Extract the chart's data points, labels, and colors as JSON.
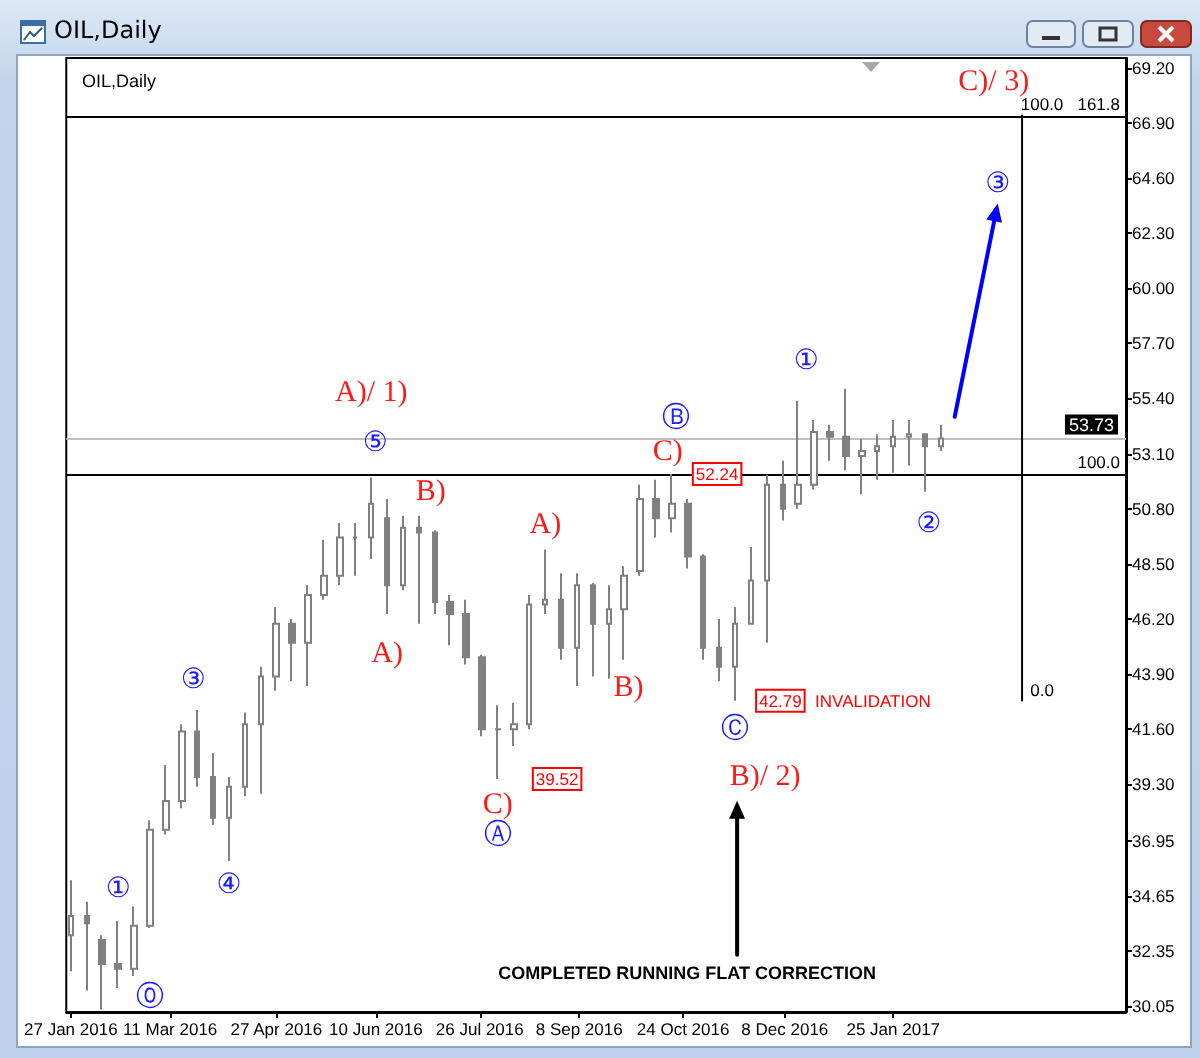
{
  "chart_data": {
    "type": "candlestick",
    "title": "OIL,Daily",
    "subtitle": "OIL,Daily",
    "series": [
      {
        "color": "#808080",
        "x": [
          "2016-01-27",
          "2016-02-03",
          "2016-02-10",
          "2016-02-17",
          "2016-02-24",
          "2016-03-02",
          "2016-03-09",
          "2016-03-16",
          "2016-03-23",
          "2016-03-30",
          "2016-04-06",
          "2016-04-13",
          "2016-04-20",
          "2016-04-27",
          "2016-05-04",
          "2016-05-11",
          "2016-05-18",
          "2016-05-25",
          "2016-06-01",
          "2016-06-08",
          "2016-06-15",
          "2016-06-22",
          "2016-06-29",
          "2016-07-06",
          "2016-07-13",
          "2016-07-20",
          "2016-07-27",
          "2016-08-03",
          "2016-08-10",
          "2016-08-17",
          "2016-08-24",
          "2016-08-31",
          "2016-09-07",
          "2016-09-14",
          "2016-09-21",
          "2016-09-28",
          "2016-10-05",
          "2016-10-12",
          "2016-10-19",
          "2016-10-26",
          "2016-11-02",
          "2016-11-09",
          "2016-11-16",
          "2016-11-23",
          "2016-11-30",
          "2016-12-07",
          "2016-12-14",
          "2016-12-21",
          "2016-12-28",
          "2017-01-04",
          "2017-01-11",
          "2017-01-18",
          "2017-01-25",
          "2017-02-01",
          "2017-02-08",
          "2017-02-15"
        ],
        "ohlc": [
          [
            33.0,
            35.3,
            31.5,
            33.8
          ],
          [
            33.8,
            34.4,
            30.7,
            33.5
          ],
          [
            32.8,
            33.0,
            29.9,
            31.8
          ],
          [
            31.8,
            33.6,
            30.8,
            31.6
          ],
          [
            31.6,
            34.2,
            31.3,
            33.4
          ],
          [
            33.4,
            37.8,
            33.3,
            37.4
          ],
          [
            37.4,
            40.1,
            37.2,
            38.6
          ],
          [
            38.6,
            41.8,
            38.3,
            41.5
          ],
          [
            41.5,
            42.4,
            39.2,
            39.6
          ],
          [
            39.6,
            40.6,
            37.6,
            37.9
          ],
          [
            37.9,
            39.6,
            36.1,
            39.2
          ],
          [
            39.2,
            42.3,
            38.8,
            41.8
          ],
          [
            41.8,
            44.2,
            38.9,
            43.8
          ],
          [
            43.8,
            46.7,
            43.2,
            46.0
          ],
          [
            46.0,
            46.2,
            43.6,
            45.2
          ],
          [
            45.2,
            47.6,
            43.4,
            47.2
          ],
          [
            47.2,
            49.5,
            47.0,
            48.0
          ],
          [
            48.0,
            50.2,
            47.6,
            49.6
          ],
          [
            49.6,
            50.2,
            48.0,
            49.6
          ],
          [
            49.6,
            52.1,
            48.7,
            51.0
          ],
          [
            50.4,
            51.2,
            46.4,
            47.6
          ],
          [
            47.6,
            50.5,
            47.4,
            50.0
          ],
          [
            50.0,
            50.5,
            46.0,
            49.8
          ],
          [
            49.8,
            49.9,
            46.4,
            46.9
          ],
          [
            46.9,
            47.2,
            45.1,
            46.4
          ],
          [
            46.4,
            47.0,
            44.3,
            44.6
          ],
          [
            44.6,
            44.7,
            41.3,
            41.6
          ],
          [
            41.6,
            42.6,
            39.52,
            41.6
          ],
          [
            41.6,
            42.7,
            40.9,
            41.8
          ],
          [
            41.8,
            47.2,
            41.6,
            46.8
          ],
          [
            46.8,
            49.1,
            46.4,
            47.0
          ],
          [
            47.0,
            48.1,
            44.5,
            45.0
          ],
          [
            45.0,
            48.1,
            43.4,
            47.6
          ],
          [
            47.6,
            47.7,
            43.8,
            46.0
          ],
          [
            46.0,
            47.6,
            43.7,
            46.6
          ],
          [
            46.6,
            48.4,
            44.5,
            48.0
          ],
          [
            48.2,
            51.8,
            48.0,
            51.2
          ],
          [
            51.2,
            52.0,
            49.6,
            50.4
          ],
          [
            50.4,
            52.24,
            49.8,
            51.0
          ],
          [
            51.0,
            51.2,
            48.3,
            48.8
          ],
          [
            48.8,
            48.9,
            44.5,
            45.0
          ],
          [
            45.0,
            46.2,
            43.6,
            44.2
          ],
          [
            44.2,
            46.7,
            42.79,
            46.0
          ],
          [
            46.0,
            49.2,
            46.0,
            47.8
          ],
          [
            47.8,
            52.2,
            45.2,
            51.8
          ],
          [
            51.8,
            52.8,
            50.3,
            50.8
          ],
          [
            51.0,
            55.3,
            50.8,
            51.8
          ],
          [
            51.8,
            54.5,
            51.6,
            54.0
          ],
          [
            54.0,
            54.3,
            52.8,
            53.8
          ],
          [
            53.8,
            55.8,
            52.4,
            53.0
          ],
          [
            53.0,
            53.7,
            51.4,
            53.2
          ],
          [
            53.2,
            53.9,
            52.0,
            53.4
          ],
          [
            53.4,
            54.5,
            52.3,
            53.8
          ],
          [
            53.8,
            54.5,
            52.6,
            53.9
          ],
          [
            53.9,
            53.9,
            51.5,
            53.4
          ],
          [
            53.4,
            54.3,
            53.2,
            53.73
          ]
        ]
      },
      {
        "type": "line",
        "color": "#000000",
        "x": [
          "2017-03-23",
          "2017-03-23"
        ],
        "values": [
          42.8,
          67.2
        ]
      }
    ],
    "xlim": [
      "2016-01-25",
      "2017-05-08"
    ],
    "xticks": [
      {
        "value": "2016-01-27",
        "label": "27 Jan 2016"
      },
      {
        "value": "2016-03-11",
        "label": "11 Mar 2016"
      },
      {
        "value": "2016-04-27",
        "label": "27 Apr 2016"
      },
      {
        "value": "2016-06-10",
        "label": "10 Jun 2016"
      },
      {
        "value": "2016-07-26",
        "label": "26 Jul 2016"
      },
      {
        "value": "2016-09-08",
        "label": "8 Sep 2016"
      },
      {
        "value": "2016-10-24",
        "label": "24 Oct 2016"
      },
      {
        "value": "2016-12-08",
        "label": "8 Dec 2016"
      },
      {
        "value": "2017-01-25",
        "label": "25 Jan 2017"
      }
    ],
    "ylim": [
      29.8,
      69.6
    ],
    "yticks": [
      30.05,
      32.35,
      34.65,
      36.95,
      {
        "value": 39.3,
        "label": "39.30"
      },
      {
        "value": 41.6,
        "label": "41.60"
      },
      {
        "value": 43.9,
        "label": "43.90"
      },
      {
        "value": 46.2,
        "label": "46.20"
      },
      {
        "value": 48.5,
        "label": "48.50"
      },
      {
        "value": 50.8,
        "label": "50.80"
      },
      {
        "value": 53.1,
        "label": "53.10"
      },
      {
        "value": 55.4,
        "label": "55.40"
      },
      {
        "value": 57.7,
        "label": "57.70"
      },
      {
        "value": 60,
        "label": "60.00"
      },
      {
        "value": 62.3,
        "label": "62.30"
      },
      {
        "value": 64.6,
        "label": "64.60"
      },
      {
        "value": 66.9,
        "label": "66.90"
      },
      {
        "value": 69.2,
        "label": "69.20"
      }
    ],
    "ref_lines": [
      {
        "axis": "y",
        "value": 67.2,
        "color": "#000000"
      },
      {
        "axis": "y",
        "value": 52.24,
        "color": "#000000"
      },
      {
        "axis": "y",
        "value": 53.73,
        "label": "53.73",
        "color": "#c0c0c0"
      }
    ],
    "annotations": [
      "⓪",
      {
        "text": "①",
        "x": "2016-02-17",
        "y": 33.6
      },
      {
        "text": "③",
        "x": "2016-03-23",
        "y": 42.4
      },
      {
        "text": "④",
        "x": "2016-04-06",
        "y": 36.1
      },
      {
        "text": "A)/ 1)",
        "x": "2016-06-08",
        "y": 52.1
      },
      {
        "text": "⑤",
        "x": "2016-06-08",
        "y": 52.1
      },
      {
        "text": "A)",
        "x": "2016-06-15",
        "y": 46.4
      },
      {
        "text": "B)",
        "x": "2016-06-29",
        "y": 50.5
      },
      {
        "text": "C)",
        "x": "2016-08-03",
        "y": 39.52
      },
      {
        "text": "Ⓐ",
        "x": "2016-08-03",
        "y": 39.52
      },
      {
        "text": "39.52",
        "x": "2016-08-03",
        "y": 39.52
      },
      {
        "text": "A)",
        "x": "2016-08-24",
        "y": 49.1
      },
      {
        "text": "B)",
        "x": "2016-09-28",
        "y": 44.5
      },
      {
        "text": "Ⓑ",
        "x": "2016-10-19",
        "y": 52.24
      },
      {
        "text": "C)",
        "x": "2016-10-19",
        "y": 52.24
      },
      {
        "text": "52.24",
        "x": "2016-10-19",
        "y": 52.24
      },
      {
        "text": "Ⓒ",
        "x": "2016-11-16",
        "y": 42.79
      },
      {
        "text": "42.79",
        "x": "2016-11-16",
        "y": 42.79
      },
      "INVALIDATION",
      {
        "text": "B)/ 2)",
        "x": "2016-11-16",
        "y": 42.79
      },
      "COMPLETED RUNNING FLAT CORRECTION",
      {
        "text": "①",
        "x": "2016-12-14",
        "y": 55.3
      },
      {
        "text": "②",
        "x": "2017-02-08",
        "y": 51.5
      },
      "③",
      {
        "text": "C)/ 3)",
        "x": "2017-03-14",
        "y": 67.2
      },
      {
        "text": "100.0",
        "x": "2017-03-23",
        "y": 67.2
      },
      {
        "text": "0.0",
        "x": "2017-03-23",
        "y": 42.8
      },
      {
        "text": "161.8",
        "x": "2017-05-08",
        "y": 67.2
      },
      {
        "text": "100.0",
        "x": "2017-05-08",
        "y": 52.24
      }
    ]
  }
}
